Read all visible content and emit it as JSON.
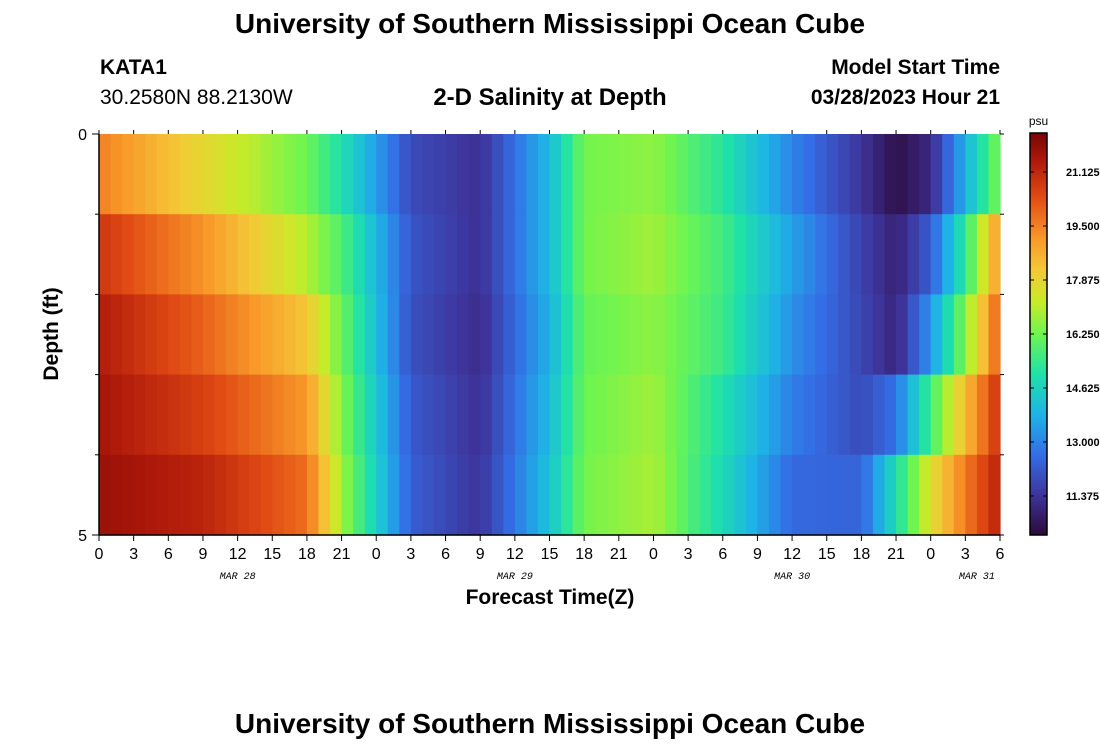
{
  "page": {
    "title": "University of Southern Mississippi Ocean Cube",
    "footer_title": "University of Southern Mississippi Ocean Cube"
  },
  "station": {
    "id": "KATA1",
    "coords": "30.2580N  88.2130W"
  },
  "model": {
    "label": "Model Start Time",
    "start": "03/28/2023 Hour 21"
  },
  "chart_data": {
    "type": "heatmap",
    "title": "2-D Salinity at Depth",
    "xlabel": "Forecast Time(Z)",
    "ylabel": "Depth (ft)",
    "ylim": [
      0,
      5
    ],
    "y_tick_labels": [
      "0",
      "5"
    ],
    "x_tick_labels": [
      "0",
      "3",
      "6",
      "9",
      "12",
      "15",
      "18",
      "21",
      "0",
      "3",
      "6",
      "9",
      "12",
      "15",
      "18",
      "21",
      "0",
      "3",
      "6",
      "9",
      "12",
      "15",
      "18",
      "21",
      "0",
      "3",
      "6"
    ],
    "date_labels": [
      "MAR 28",
      "MAR 29",
      "MAR 30",
      "MAR 31"
    ],
    "colorbar": {
      "unit": "psu",
      "ticks": [
        "21.125",
        "19.500",
        "17.875",
        "16.250",
        "14.625",
        "13.000",
        "11.375"
      ],
      "range": [
        10.2,
        22.3
      ]
    },
    "depth_bins": [
      0.5,
      1.5,
      2.5,
      3.5,
      4.5
    ],
    "hours_from_mar28_00": [
      0,
      9,
      18,
      21,
      27,
      33,
      39,
      42,
      48,
      54,
      60,
      66,
      69,
      72,
      75,
      78
    ],
    "salinity_psu": [
      [
        19.5,
        17.8,
        16.2,
        15.0,
        11.9,
        11.3,
        14.0,
        16.3,
        16.6,
        15.2,
        13.0,
        11.4,
        10.4,
        11.1,
        13.8,
        16.5
      ],
      [
        20.8,
        19.2,
        17.0,
        15.8,
        12.1,
        11.3,
        14.0,
        16.3,
        16.8,
        15.6,
        13.5,
        11.7,
        10.9,
        12.3,
        15.3,
        19.3
      ],
      [
        21.4,
        20.0,
        18.2,
        16.2,
        12.0,
        11.2,
        13.8,
        16.1,
        16.6,
        15.5,
        13.2,
        11.8,
        11.0,
        13.3,
        16.5,
        20.2
      ],
      [
        21.6,
        20.6,
        19.1,
        16.5,
        12.2,
        11.3,
        14.0,
        16.2,
        16.8,
        15.0,
        12.9,
        11.9,
        12.7,
        15.6,
        18.4,
        21.0
      ],
      [
        21.8,
        21.2,
        19.8,
        16.8,
        12.3,
        11.4,
        14.2,
        16.3,
        16.9,
        14.8,
        12.5,
        12.4,
        14.9,
        17.6,
        19.6,
        21.3
      ]
    ]
  }
}
